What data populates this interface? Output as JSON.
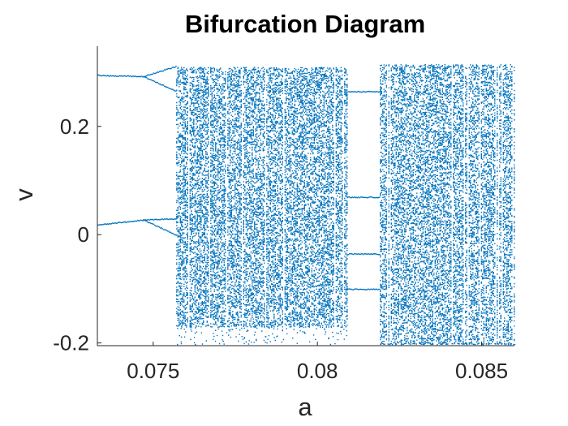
{
  "chart_data": {
    "type": "scatter",
    "title": "Bifurcation Diagram",
    "xlabel": "a",
    "ylabel": "v",
    "xlim": [
      0.0733,
      0.086
    ],
    "ylim": [
      -0.205,
      0.348
    ],
    "xticks": [
      {
        "value": 0.075,
        "label": "0.075"
      },
      {
        "value": 0.08,
        "label": "0.08"
      },
      {
        "value": 0.085,
        "label": "0.085"
      }
    ],
    "yticks": [
      {
        "value": -0.2,
        "label": "-0.2"
      },
      {
        "value": 0,
        "label": "0"
      },
      {
        "value": 0.2,
        "label": "0.2"
      }
    ],
    "grid": false,
    "marker_color": "#0072BD",
    "regimes": [
      {
        "name": "period-2",
        "a_range": [
          0.0733,
          0.0747
        ],
        "branches": [
          [
            0.295,
            0.293
          ],
          [
            0.019,
            0.028
          ]
        ]
      },
      {
        "name": "period-4",
        "a_range": [
          0.0747,
          0.0757
        ],
        "branches": [
          [
            0.293,
            0.312
          ],
          [
            0.293,
            0.265
          ],
          [
            0.028,
            0.03
          ],
          [
            0.028,
            0.0
          ]
        ]
      },
      {
        "name": "chaotic",
        "a_range": [
          0.0757,
          0.0809
        ],
        "v_range": [
          -0.17,
          0.31
        ]
      },
      {
        "name": "periodic-window",
        "a_range": [
          0.0809,
          0.0819
        ],
        "branches": [
          [
            0.265,
            0.265
          ],
          [
            0.07,
            0.07
          ],
          [
            -0.035,
            -0.035
          ],
          [
            -0.1,
            -0.1
          ]
        ]
      },
      {
        "name": "chaotic",
        "a_range": [
          0.0819,
          0.086
        ],
        "v_range": [
          -0.2,
          0.315
        ]
      }
    ]
  }
}
